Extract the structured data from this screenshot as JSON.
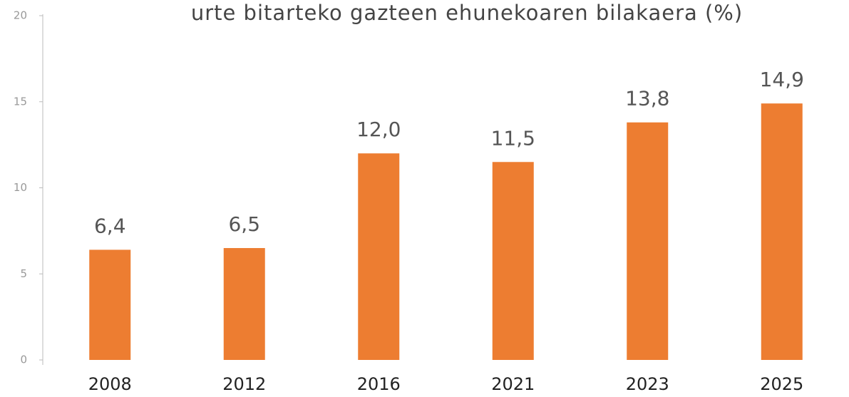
{
  "chart_data": {
    "type": "bar",
    "title": "urte bitarteko gazteen ehunekoaren bilakaera (%)",
    "categories": [
      "2008",
      "2012",
      "2016",
      "2021",
      "2023",
      "2025"
    ],
    "values": [
      6.4,
      6.5,
      12.0,
      11.5,
      13.8,
      14.9
    ],
    "value_labels": [
      "6,4",
      "6,5",
      "12,0",
      "11,5",
      "13,8",
      "14,9"
    ],
    "color": "#ed7d31",
    "ylim": [
      0,
      20
    ],
    "yticks": [
      0,
      5,
      10,
      15,
      20
    ],
    "grid": false
  }
}
